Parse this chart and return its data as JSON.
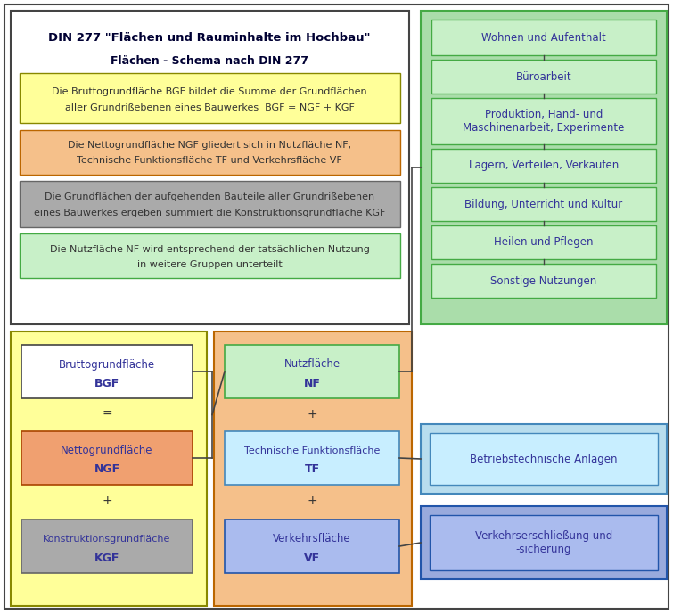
{
  "title1": "DIN 277 \"Flächen und Rauminhalte im Hochbau\"",
  "title2": "Flächen - Schema nach DIN 277",
  "box_yellow_text": "Die Bruttogrundfläche BGF bildet die Summe der Grundflächen\naller Grundrißebenen eines Bauwerkes  BGF = NGF + KGF",
  "box_orange_text": "Die Nettogrundfläche NGF gliedert sich in Nutzfläche NF,\nTechnische Funktionsfläche TF und Verkehrsfläche VF",
  "box_gray_text": "Die Grundflächen der aufgehenden Bauteile aller Grundrißebenen\neines Bauwerkes ergeben summiert die Konstruktionsgrundfläche KGF",
  "box_green_text": "Die Nutzfläche NF wird entsprechend der tatsächlichen Nutzung\nin weitere Gruppen unterteilt",
  "bgf_line1": "Bruttogrundfläche",
  "bgf_line2": "BGF",
  "eq_sign": "=",
  "ngf_line1": "Nettogrundfläche",
  "ngf_line2": "NGF",
  "plus1": "+",
  "kgf_line1": "Konstruktionsgrundfläche",
  "kgf_line2": "KGF",
  "nf_line1": "Nutzfläche",
  "nf_line2": "NF",
  "plus2": "+",
  "tf_line1": "Technische Funktionsfläche",
  "tf_line2": "TF",
  "plus3": "+",
  "vf_line1": "Verkehrsfläche",
  "vf_line2": "VF",
  "nf_items": [
    "Wohnen und Aufenthalt",
    "Büroarbeit",
    "Produktion, Hand- und\nMaschinenarbeit, Experimente",
    "Lagern, Verteilen, Verkaufen",
    "Bildung, Unterricht und Kultur",
    "Heilen und Pflegen",
    "Sonstige Nutzungen"
  ],
  "tf_item": "Betriebstechnische Anlagen",
  "vf_item": "Verkehrserschließung und\n-sicherung",
  "c_yellow": "#FFFF99",
  "c_orange_bg": "#F5C08A",
  "c_orange_box": "#F0A070",
  "c_gray_bg": "#AAAAAA",
  "c_green_bg": "#AADDAA",
  "c_green_inner": "#C8F0C8",
  "c_lightblue_bg": "#B8DDEE",
  "c_lightblue_inner": "#C8EEFF",
  "c_blue_bg": "#99AADD",
  "c_blue_inner": "#AABBEE",
  "c_white": "#FFFFFF",
  "c_border": "#444444",
  "c_text_blue": "#333399",
  "c_text_dark": "#000033",
  "c_text_body": "#333333",
  "c_bg": "#FFFFFF"
}
